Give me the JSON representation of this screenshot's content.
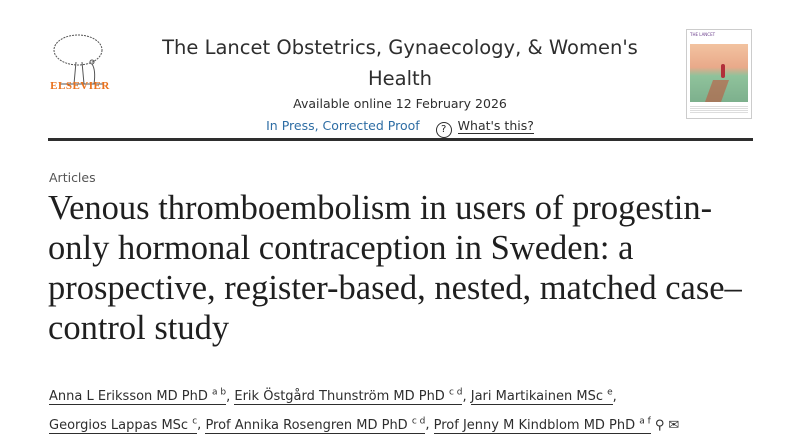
{
  "header": {
    "publisher": "ELSEVIER",
    "journal_title": "The Lancet Obstetrics, Gynaecology, & Women's Health",
    "available_online": "Available online 12 February 2026",
    "status_link": "In Press, Corrected Proof",
    "help_icon": "question-circle-icon",
    "whats_this": "What's this?"
  },
  "article": {
    "section": "Articles",
    "title": "Venous thromboembolism in users of progestin-only hormonal contraception in Sweden: a prospective, register-based, nested, matched case–control study",
    "authors": [
      {
        "name": "Anna L Eriksson MD PhD",
        "aff": "a b",
        "sep": ", "
      },
      {
        "name": "Erik Östgård Thunström MD PhD",
        "aff": "c d",
        "sep": ", "
      },
      {
        "name": "Jari Martikainen MSc",
        "aff": "e",
        "sep": ","
      },
      {
        "name": "Georgios Lappas MSc",
        "aff": "c",
        "sep": ", "
      },
      {
        "name": "Prof Annika Rosengren MD PhD",
        "aff": "c d",
        "sep": ", "
      },
      {
        "name": "Prof Jenny M Kindblom MD PhD",
        "aff": "a f",
        "sep": ""
      }
    ],
    "author_icons": [
      "person-icon",
      "envelope-icon"
    ]
  },
  "colors": {
    "brand": "#e9711c",
    "link": "#2e6da4"
  }
}
